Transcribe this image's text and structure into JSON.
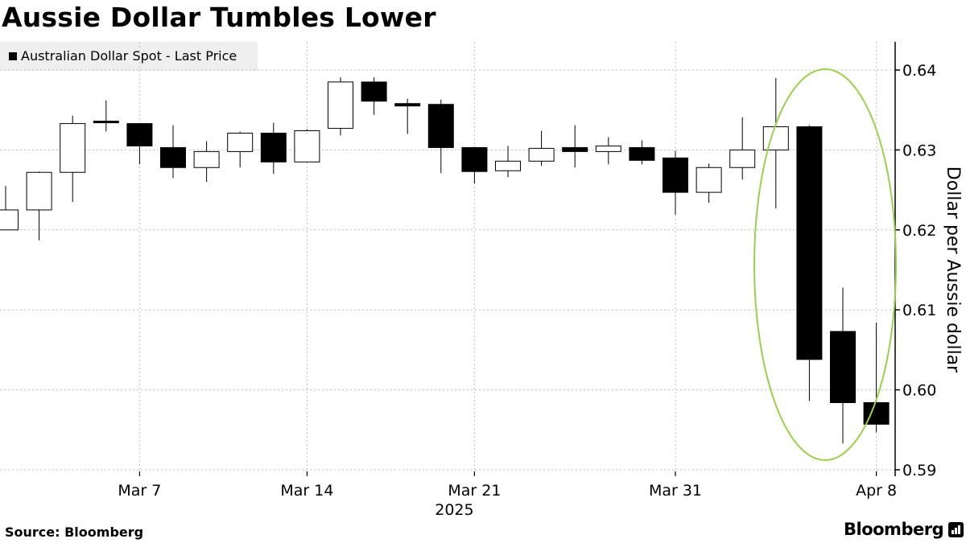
{
  "title": "Aussie Dollar Tumbles Lower",
  "legend": {
    "label": "Australian Dollar Spot - Last Price",
    "swatch_color": "#000000"
  },
  "source": "Source: Bloomberg",
  "brand": "Bloomberg",
  "brand_icon": "bloomberg-terminal-icon",
  "highlight": {
    "shape": "ellipse",
    "color": "#9ad14b",
    "covers": "Apr 2 - Apr 8"
  },
  "chart_data": {
    "type": "candlestick",
    "ylabel": "Dollar per Aussie dollar",
    "ylim": [
      0.59,
      0.6415
    ],
    "yticks": [
      "0.59",
      "0.60",
      "0.61",
      "0.62",
      "0.63",
      "0.64"
    ],
    "ytick_values": [
      0.59,
      0.6,
      0.61,
      0.62,
      0.63,
      0.64
    ],
    "xtick_labels": [
      {
        "label": "Mar 7",
        "index": 4
      },
      {
        "label": "Mar 14",
        "index": 9
      },
      {
        "label": "Mar 21",
        "index": 14
      },
      {
        "label": "Mar 31",
        "index": 20
      },
      {
        "label": "Apr 8",
        "index": 26
      }
    ],
    "year_label": {
      "label": "2025",
      "index": 13.4
    },
    "up_color": "#ffffff",
    "down_color": "#000000",
    "candles": [
      {
        "o": 0.62,
        "h": 0.6255,
        "l": 0.62,
        "c": 0.6225
      },
      {
        "o": 0.6225,
        "h": 0.6273,
        "l": 0.6187,
        "c": 0.6272
      },
      {
        "o": 0.6272,
        "h": 0.6343,
        "l": 0.6235,
        "c": 0.6333
      },
      {
        "o": 0.6335,
        "h": 0.6362,
        "l": 0.6323,
        "c": 0.6333
      },
      {
        "o": 0.6333,
        "h": 0.6333,
        "l": 0.6282,
        "c": 0.6305
      },
      {
        "o": 0.6303,
        "h": 0.6331,
        "l": 0.6265,
        "c": 0.6278
      },
      {
        "o": 0.6278,
        "h": 0.6311,
        "l": 0.626,
        "c": 0.6298
      },
      {
        "o": 0.6298,
        "h": 0.6323,
        "l": 0.6278,
        "c": 0.6321
      },
      {
        "o": 0.6321,
        "h": 0.6334,
        "l": 0.627,
        "c": 0.6285
      },
      {
        "o": 0.6285,
        "h": 0.6326,
        "l": 0.6285,
        "c": 0.6324
      },
      {
        "o": 0.6327,
        "h": 0.6391,
        "l": 0.6318,
        "c": 0.6385
      },
      {
        "o": 0.6385,
        "h": 0.6391,
        "l": 0.6344,
        "c": 0.6361
      },
      {
        "o": 0.6358,
        "h": 0.6364,
        "l": 0.632,
        "c": 0.6355
      },
      {
        "o": 0.6357,
        "h": 0.6363,
        "l": 0.6271,
        "c": 0.6303
      },
      {
        "o": 0.6303,
        "h": 0.6303,
        "l": 0.6258,
        "c": 0.6273
      },
      {
        "o": 0.6274,
        "h": 0.6305,
        "l": 0.6266,
        "c": 0.6286
      },
      {
        "o": 0.6286,
        "h": 0.6324,
        "l": 0.628,
        "c": 0.6302
      },
      {
        "o": 0.6303,
        "h": 0.6331,
        "l": 0.6278,
        "c": 0.6298
      },
      {
        "o": 0.6298,
        "h": 0.6316,
        "l": 0.6282,
        "c": 0.6305
      },
      {
        "o": 0.6303,
        "h": 0.6312,
        "l": 0.6282,
        "c": 0.6287
      },
      {
        "o": 0.629,
        "h": 0.6299,
        "l": 0.6219,
        "c": 0.6247
      },
      {
        "o": 0.6247,
        "h": 0.6283,
        "l": 0.6234,
        "c": 0.6278
      },
      {
        "o": 0.6278,
        "h": 0.6341,
        "l": 0.6263,
        "c": 0.63
      },
      {
        "o": 0.63,
        "h": 0.639,
        "l": 0.6227,
        "c": 0.6329
      },
      {
        "o": 0.6329,
        "h": 0.6331,
        "l": 0.5986,
        "c": 0.6038
      },
      {
        "o": 0.6073,
        "h": 0.6128,
        "l": 0.5933,
        "c": 0.5984
      },
      {
        "o": 0.5984,
        "h": 0.6084,
        "l": 0.5947,
        "c": 0.5957
      }
    ]
  }
}
